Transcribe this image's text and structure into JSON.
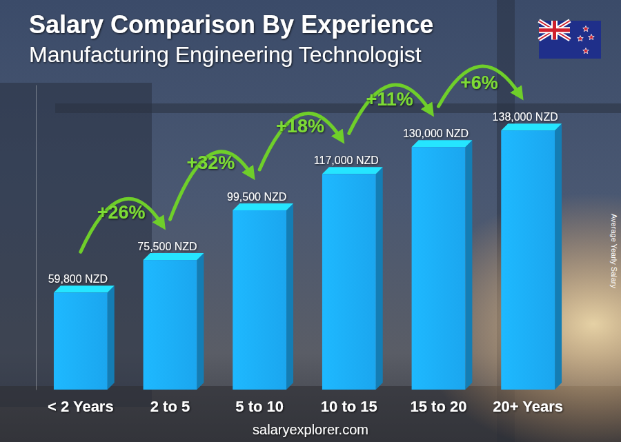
{
  "chart_data": {
    "type": "bar",
    "title": "Salary Comparison By Experience",
    "subtitle": "Manufacturing Engineering Technologist",
    "ylabel": "Average Yearly Salary",
    "categories": [
      "< 2 Years",
      "2 to 5",
      "5 to 10",
      "10 to 15",
      "15 to 20",
      "20+ Years"
    ],
    "values": [
      59800,
      75500,
      99500,
      117000,
      130000,
      138000
    ],
    "value_labels": [
      "59,800 NZD",
      "75,500 NZD",
      "99,500 NZD",
      "117,000 NZD",
      "130,000 NZD",
      "138,000 NZD"
    ],
    "color": "#1ba6ef",
    "ylim": [
      13000,
      160000
    ],
    "data_labels": true,
    "tick_labels": "x",
    "grid": false,
    "annotations": [
      "+26%",
      "+32%",
      "+18%",
      "+11%",
      "+6%"
    ],
    "source": "salaryexplorer.com"
  }
}
